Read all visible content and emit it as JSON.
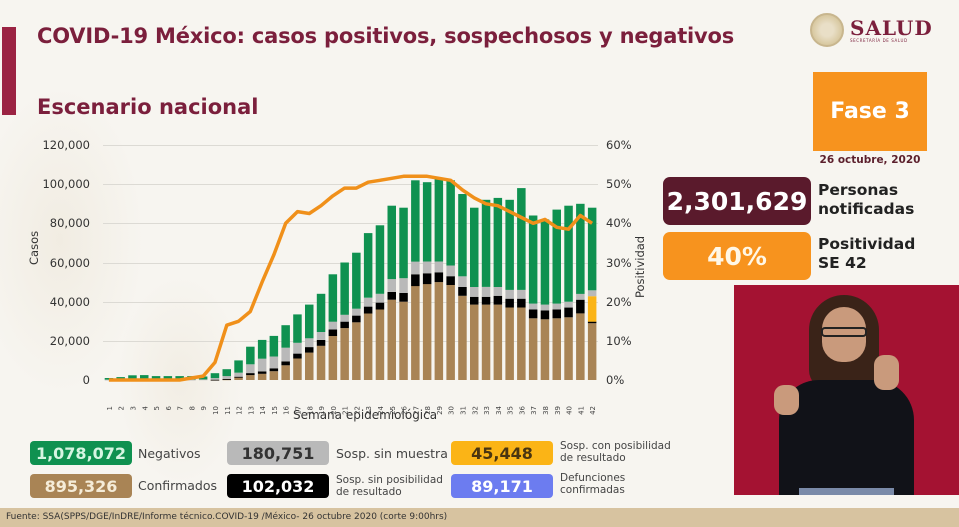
{
  "header": {
    "title": "COVID-19 México: casos positivos, sospechosos y negativos",
    "subtitle": "Escenario nacional",
    "logo_main": "SALUD",
    "logo_sub": "SECRETARÍA DE SALUD"
  },
  "phase": {
    "label": "Fase 3",
    "date": "26 octubre, 2020"
  },
  "stats": {
    "personas_value": "2,301,629",
    "personas_label_1": "Personas",
    "personas_label_2": "notificadas",
    "positividad_value": "40%",
    "positividad_label_1": "Positividad",
    "positividad_label_2": "SE 42"
  },
  "legend": {
    "negativos": {
      "value": "1,078,072",
      "label": "Negativos",
      "color": "#0f9150"
    },
    "confirmados": {
      "value": "895,326",
      "label": "Confirmados",
      "color": "#a98455"
    },
    "sin_muestra": {
      "value": "180,751",
      "label": "Sosp. sin muestra",
      "color": "#b9b9b9"
    },
    "sin_posibilidad": {
      "value": "102,032",
      "label_1": "Sosp. sin posibilidad",
      "label_2": "de resultado",
      "color": "#000000"
    },
    "con_posibilidad": {
      "value": "45,448",
      "label_1": "Sosp. con posibilidad",
      "label_2": "de resultado",
      "color": "#fbb416"
    },
    "defunciones": {
      "value": "89,171",
      "label_1": "Defunciones",
      "label_2": "confirmadas",
      "color": "#6c7cf0"
    }
  },
  "footer": {
    "source": "Fuente: SSA(SPPS/DGE/InDRE/Informe técnico.COVID-19 /México- 26 octubre 2020 (corte 9:00hrs)"
  },
  "chart_data": {
    "type": "bar",
    "stacked": true,
    "title": "Escenario nacional",
    "xlabel": "Semana epidemiológica",
    "ylabel": "Casos",
    "y2label": "Positividad",
    "ylim": [
      0,
      120000
    ],
    "y2lim": [
      0,
      60
    ],
    "y_ticks": [
      "0",
      "20,000",
      "40,000",
      "60,000",
      "80,000",
      "100,000",
      "120,000"
    ],
    "y2_ticks": [
      "0%",
      "10%",
      "20%",
      "30%",
      "40%",
      "50%",
      "60%"
    ],
    "grid": true,
    "categories": [
      "1",
      "2",
      "3",
      "4",
      "5",
      "6",
      "7",
      "8",
      "9",
      "10",
      "11",
      "12",
      "13",
      "14",
      "15",
      "16",
      "17",
      "18",
      "19",
      "20",
      "21",
      "22",
      "23",
      "24",
      "25",
      "26",
      "27",
      "28",
      "29",
      "30",
      "31",
      "32",
      "33",
      "34",
      "35",
      "36",
      "37",
      "38",
      "39",
      "40",
      "41",
      "42"
    ],
    "series": [
      {
        "name": "Confirmados",
        "color": "#a98455",
        "values": [
          0,
          0,
          0,
          0,
          0,
          0,
          0,
          0,
          0,
          100,
          300,
          1200,
          2500,
          3200,
          4500,
          7500,
          11000,
          14000,
          17500,
          22500,
          26500,
          29500,
          34000,
          36000,
          41000,
          40000,
          48000,
          49000,
          50000,
          48500,
          43000,
          38500,
          38500,
          38500,
          37000,
          37000,
          31500,
          31000,
          31500,
          32000,
          34000,
          29000
        ]
      },
      {
        "name": "Sosp. sin posibilidad de resultado",
        "color": "#000000",
        "values": [
          0,
          0,
          0,
          0,
          0,
          0,
          0,
          0,
          0,
          50,
          200,
          500,
          1000,
          1200,
          1500,
          2000,
          2500,
          2800,
          3000,
          3300,
          3300,
          3400,
          3500,
          3500,
          4000,
          4500,
          6000,
          5500,
          5000,
          4500,
          4500,
          4000,
          4000,
          4500,
          4500,
          4500,
          4500,
          4500,
          4500,
          5000,
          7000,
          800
        ]
      },
      {
        "name": "Sosp. con posibilidad de resultado",
        "color": "#fbb416",
        "values": [
          0,
          0,
          0,
          0,
          0,
          0,
          0,
          0,
          0,
          0,
          0,
          0,
          0,
          0,
          0,
          0,
          0,
          0,
          0,
          0,
          0,
          0,
          0,
          0,
          0,
          0,
          0,
          0,
          0,
          0,
          0,
          0,
          0,
          0,
          0,
          0,
          0,
          0,
          0,
          0,
          0,
          13000
        ]
      },
      {
        "name": "Sosp. sin muestra",
        "color": "#b9b9b9",
        "values": [
          200,
          200,
          200,
          200,
          200,
          200,
          200,
          200,
          300,
          800,
          1500,
          2000,
          4500,
          6500,
          6000,
          7000,
          5500,
          4500,
          4000,
          4000,
          3500,
          3500,
          4500,
          4500,
          6500,
          7500,
          6500,
          6000,
          5500,
          5500,
          5500,
          5000,
          5000,
          4500,
          4500,
          4500,
          3000,
          3000,
          3000,
          3000,
          3000,
          3000
        ]
      },
      {
        "name": "Negativos",
        "color": "#0f9150",
        "values": [
          800,
          1300,
          2200,
          2300,
          1800,
          1800,
          1800,
          1800,
          1500,
          2500,
          3500,
          6300,
          9000,
          9600,
          10500,
          11500,
          14500,
          17200,
          19500,
          24200,
          26700,
          28600,
          33000,
          35000,
          37500,
          36000,
          41500,
          40500,
          42500,
          43500,
          42000,
          40500,
          44500,
          45500,
          46000,
          52000,
          45000,
          43500,
          48000,
          49000,
          46000,
          42200
        ]
      }
    ],
    "line": {
      "name": "Positividad (%)",
      "color": "#f0901a",
      "axis": "right",
      "values": [
        0,
        0,
        0,
        0,
        0,
        0,
        0,
        0.5,
        1,
        4.5,
        14,
        15,
        17.5,
        25,
        32,
        40,
        43,
        42.5,
        44.5,
        47,
        49,
        49,
        50.5,
        51,
        51.5,
        52,
        52,
        52,
        51.5,
        51,
        48.5,
        46.5,
        45,
        44.5,
        43,
        41.5,
        40,
        41,
        39,
        38.5,
        42,
        40
      ]
    }
  }
}
